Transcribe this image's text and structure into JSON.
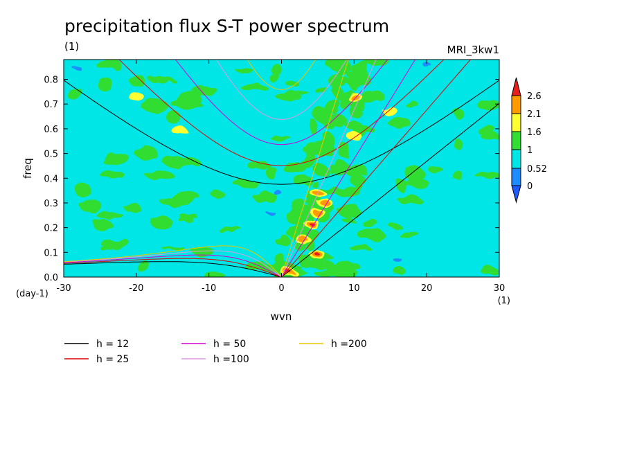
{
  "chart_data": {
    "type": "heatmap",
    "title": "precipitation flux S-T power spectrum",
    "left_note": "(1)",
    "model_label": "MRI_3kw1",
    "xlabel": "wvn",
    "ylabel": "freq",
    "x_unit": "(1)",
    "y_unit": "(day-1)",
    "xlim": [
      -30,
      30
    ],
    "ylim": [
      0,
      0.88
    ],
    "x_ticks": [
      "-30",
      "-20",
      "-10",
      "0",
      "10",
      "20",
      "30"
    ],
    "y_ticks": [
      "0.0",
      "0.1",
      "0.2",
      "0.3",
      "0.4",
      "0.5",
      "0.6",
      "0.7",
      "0.8"
    ],
    "colorbar": {
      "levels": [
        "2.6",
        "2.1",
        "1.6",
        "1",
        "0.52",
        "0"
      ],
      "colors": [
        "#e61e1e",
        "#ff9a00",
        "#ffff33",
        "#33dd33",
        "#00e6e6",
        "#1e8cff",
        "#1e5aff",
        "#f01414"
      ]
    },
    "dispersion_curves": [
      {
        "label": "h = 12",
        "h": 12,
        "color": "#000000"
      },
      {
        "label": "h = 25",
        "h": 25,
        "color": "#e00000"
      },
      {
        "label": "h = 50",
        "h": 50,
        "color": "#d400d4"
      },
      {
        "label": "h =100",
        "h": 100,
        "color": "#e09ae0"
      },
      {
        "label": "h =200",
        "h": 200,
        "color": "#e8c800"
      }
    ],
    "high_power_regions": [
      {
        "wvn": 1,
        "freq": 0.02,
        "level": 2.6
      },
      {
        "wvn": 5,
        "freq": 0.09,
        "level": 2.6
      },
      {
        "wvn": 4,
        "freq": 0.22,
        "level": 2.6
      },
      {
        "wvn": 5,
        "freq": 0.26,
        "level": 2.1
      },
      {
        "wvn": 6,
        "freq": 0.3,
        "level": 2.1
      },
      {
        "wvn": 5,
        "freq": 0.34,
        "level": 2.1
      },
      {
        "wvn": 3,
        "freq": 0.15,
        "level": 2.1
      },
      {
        "wvn": 10,
        "freq": 0.73,
        "level": 2.1
      },
      {
        "wvn": -20,
        "freq": 0.73,
        "level": 1.6
      },
      {
        "wvn": -14,
        "freq": 0.59,
        "level": 1.6
      },
      {
        "wvn": 10,
        "freq": 0.57,
        "level": 1.6
      },
      {
        "wvn": 15,
        "freq": 0.67,
        "level": 1.6
      }
    ]
  }
}
